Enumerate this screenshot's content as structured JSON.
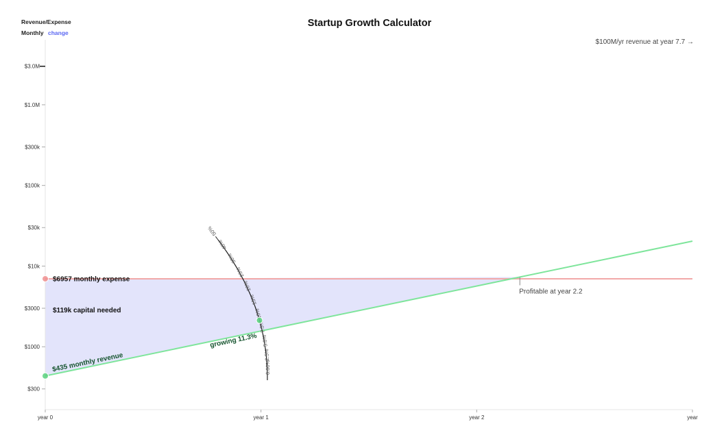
{
  "header": {
    "title": "Startup Growth Calculator",
    "metric_label": "Revenue/Expense",
    "period_label": "Monthly",
    "change_label": "change",
    "milestone_text": "$100M/yr revenue at year 7.7 →"
  },
  "annotations": {
    "expense_label": "$6957 monthly expense",
    "capital_label": "$119k capital needed",
    "revenue_label": "$435 monthly revenue",
    "growth_label": "growing 11.3%",
    "profitable_label": "Profitable at year 2.2"
  },
  "colors": {
    "revenue": "#7ee59b",
    "revenue_dot": "#5bd17f",
    "expense": "#f2a8a8",
    "expense_dot": "#f08f8f",
    "capital_fill": "#e3e4fb",
    "link": "#5a67f2"
  },
  "growth_dial": {
    "ticks": [
      "0.00%",
      "2.5%",
      "5.0%",
      "7.5%",
      "10%",
      "15%",
      "20%",
      "25%",
      "30%",
      "40%",
      "50%"
    ],
    "selected": 11.3
  },
  "chart_data": {
    "type": "line",
    "title": "Startup Growth Calculator",
    "x_tick_labels": [
      "year 0",
      "year 1",
      "year 2",
      "year"
    ],
    "y_tick_labels": [
      "$300",
      "$1000",
      "$3000",
      "$10k",
      "$30k",
      "$100k",
      "$300k",
      "$1.0M",
      "$3.0M"
    ],
    "y_scale": "log",
    "y_ticks": [
      300,
      1000,
      3000,
      10000,
      30000,
      100000,
      300000,
      1000000,
      3000000
    ],
    "x_range": [
      0,
      3
    ],
    "y_range": [
      166,
      6400000
    ],
    "series": [
      {
        "key": "revenue",
        "points": [
          [
            0,
            435
          ],
          [
            3,
            20400
          ]
        ]
      },
      {
        "key": "expense",
        "points": [
          [
            0,
            6957
          ],
          [
            3,
            6957
          ]
        ]
      }
    ],
    "profitable_year": 2.2,
    "monthly_growth_percent": 11.3,
    "capital_needed": 119000,
    "starting_revenue": 435,
    "monthly_expense": 6957
  }
}
